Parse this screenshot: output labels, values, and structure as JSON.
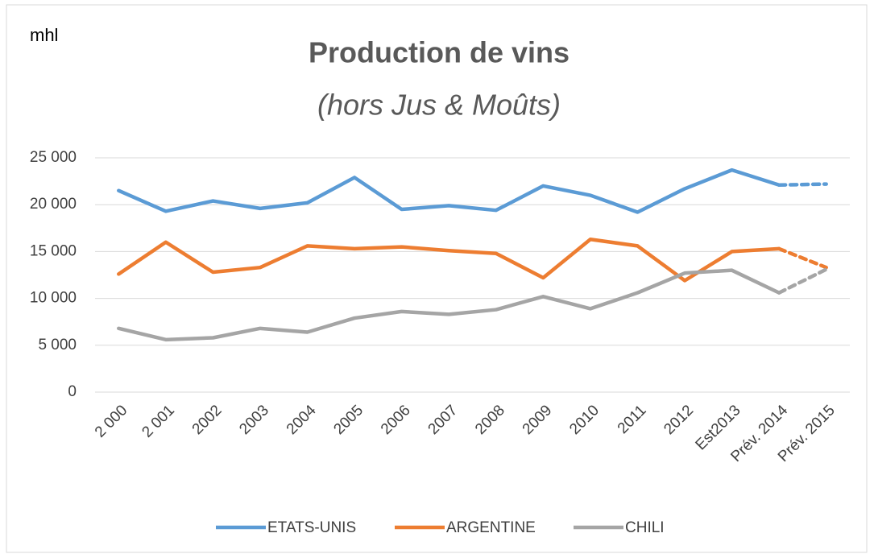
{
  "chart_data": {
    "type": "line",
    "title": "Production de vins",
    "subtitle": "(hors Jus & Moûts)",
    "y_label": "mhl",
    "categories": [
      "2 000",
      "2 001",
      "2002",
      "2003",
      "2004",
      "2005",
      "2006",
      "2007",
      "2008",
      "2009",
      "2010",
      "2011",
      "2012",
      "Est2013",
      "Prév. 2014",
      "Prév. 2015"
    ],
    "series": [
      {
        "name": "ETATS-UNIS",
        "color": "#5b9bd5",
        "values": [
          21500,
          19300,
          20400,
          19600,
          20200,
          22900,
          19500,
          19900,
          19400,
          22000,
          21000,
          19200,
          21700,
          23700,
          22100,
          22200
        ]
      },
      {
        "name": "ARGENTINE",
        "color": "#ed7d31",
        "values": [
          12600,
          16000,
          12800,
          13300,
          15600,
          15300,
          15500,
          15100,
          14800,
          12200,
          16300,
          15600,
          11900,
          15000,
          15300,
          13300
        ]
      },
      {
        "name": "CHILI",
        "color": "#a5a5a5",
        "values": [
          6800,
          5600,
          5800,
          6800,
          6400,
          7900,
          8600,
          8300,
          8800,
          10200,
          8900,
          10600,
          12700,
          13000,
          10600,
          13100
        ]
      }
    ],
    "dashed_from_index": 14,
    "ylim": [
      0,
      25000
    ],
    "yticks": [
      0,
      {
        "value": 5000,
        "label": "5 000"
      },
      {
        "value": 10000,
        "label": "10 000"
      },
      {
        "value": 15000,
        "label": "15 000"
      },
      {
        "value": 20000,
        "label": "20 000"
      },
      {
        "value": 25000,
        "label": "25 000"
      }
    ],
    "grid": true,
    "legend": "bottom"
  }
}
